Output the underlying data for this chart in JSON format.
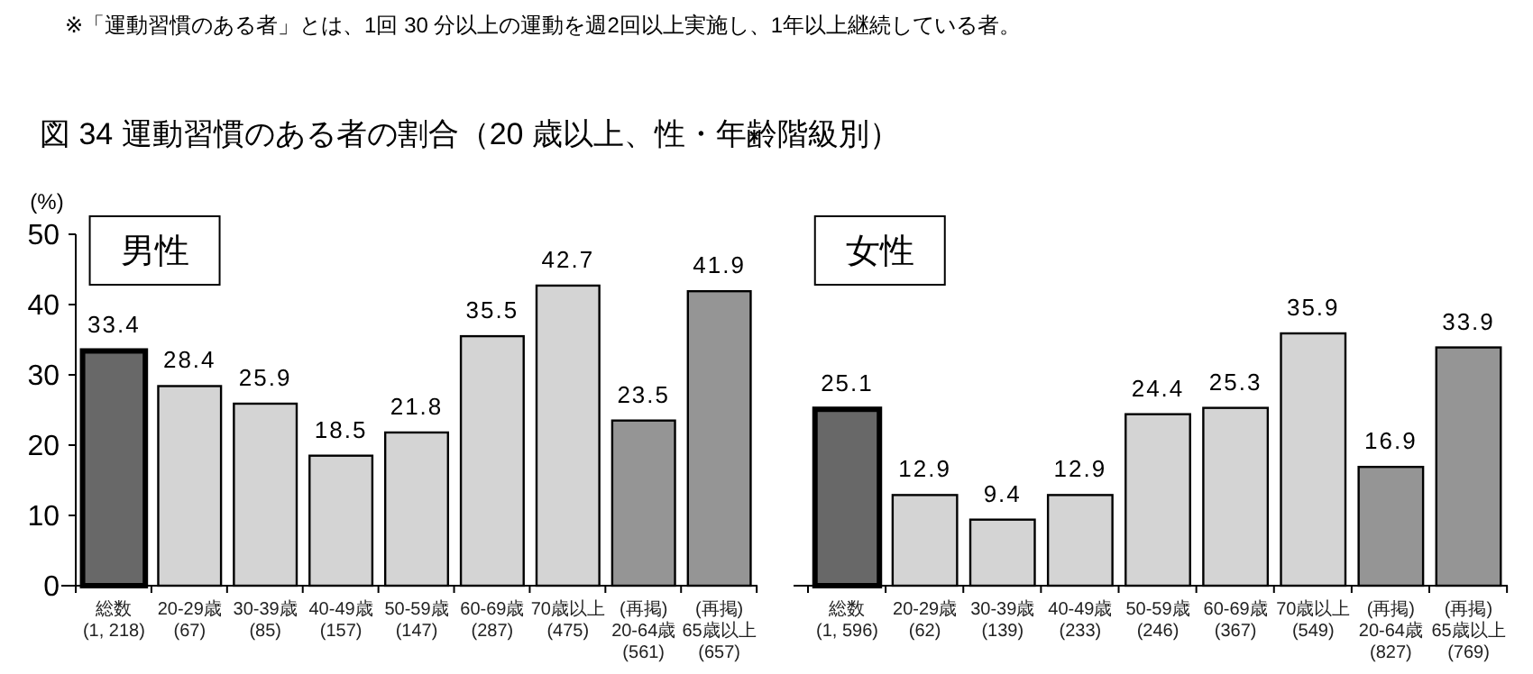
{
  "chart_data": [
    {
      "type": "bar",
      "title": "図 34  運動習慣のある者の割合（20 歳以上、性・年齢階級別）",
      "subtitle": "男性",
      "ylabel": "(%)",
      "annotations": [
        "※「運動習慣のある者」とは、1回 30 分以上の運動を週2回以上実施し、1年以上継続している者。"
      ],
      "categories": [
        "総数\n(1, 218)",
        "20-29歳\n(67)",
        "30-39歳\n(85)",
        "40-49歳\n(157)",
        "50-59歳\n(147)",
        "60-69歳\n(287)",
        "70歳以上\n(475)",
        "(再掲)\n20-64歳\n(561)",
        "(再掲)\n65歳以上\n(657)"
      ],
      "values": [
        33.4,
        28.4,
        25.9,
        18.5,
        21.8,
        35.5,
        42.7,
        23.5,
        41.9
      ],
      "colors": [
        "#686868",
        "#d4d4d4",
        "#d4d4d4",
        "#d4d4d4",
        "#d4d4d4",
        "#d4d4d4",
        "#d4d4d4",
        "#959595",
        "#959595"
      ],
      "ylim": [
        0,
        50
      ],
      "yticks": [
        0,
        10,
        20,
        30,
        40,
        50
      ],
      "data_labels": true
    },
    {
      "type": "bar",
      "subtitle": "女性",
      "categories": [
        "総数\n(1, 596)",
        "20-29歳\n(62)",
        "30-39歳\n(139)",
        "40-49歳\n(233)",
        "50-59歳\n(246)",
        "60-69歳\n(367)",
        "70歳以上\n(549)",
        "(再掲)\n20-64歳\n(827)",
        "(再掲)\n65歳以上\n(769)"
      ],
      "values": [
        25.1,
        12.9,
        9.4,
        12.9,
        24.4,
        25.3,
        35.9,
        16.9,
        33.9
      ],
      "colors": [
        "#686868",
        "#d4d4d4",
        "#d4d4d4",
        "#d4d4d4",
        "#d4d4d4",
        "#d4d4d4",
        "#d4d4d4",
        "#959595",
        "#959595"
      ],
      "ylim": [
        0,
        50
      ],
      "yticks": [
        0,
        10,
        20,
        30,
        40,
        50
      ],
      "tick_labels": "x",
      "data_labels": true
    }
  ]
}
